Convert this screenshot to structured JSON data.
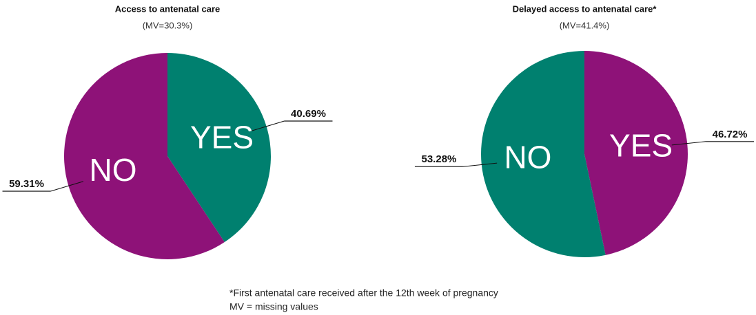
{
  "chart_data": [
    {
      "type": "pie",
      "title": "Access to antenatal care",
      "subtitle": "(MV=30.3%)",
      "categories": [
        "YES",
        "NO"
      ],
      "values": [
        40.69,
        59.31
      ],
      "value_labels": [
        "40.69%",
        "59.31%"
      ],
      "colors": [
        "#00806f",
        "#8e1278"
      ]
    },
    {
      "type": "pie",
      "title": "Delayed access to antenatal care*",
      "subtitle": "(MV=41.4%)",
      "categories": [
        "YES",
        "NO"
      ],
      "values": [
        46.72,
        53.28
      ],
      "value_labels": [
        "46.72%",
        "53.28%"
      ],
      "colors": [
        "#8e1278",
        "#00806f"
      ]
    }
  ],
  "footnotes": [
    "*First antenatal care received after the 12th week of pregnancy",
    "MV = missing values"
  ]
}
